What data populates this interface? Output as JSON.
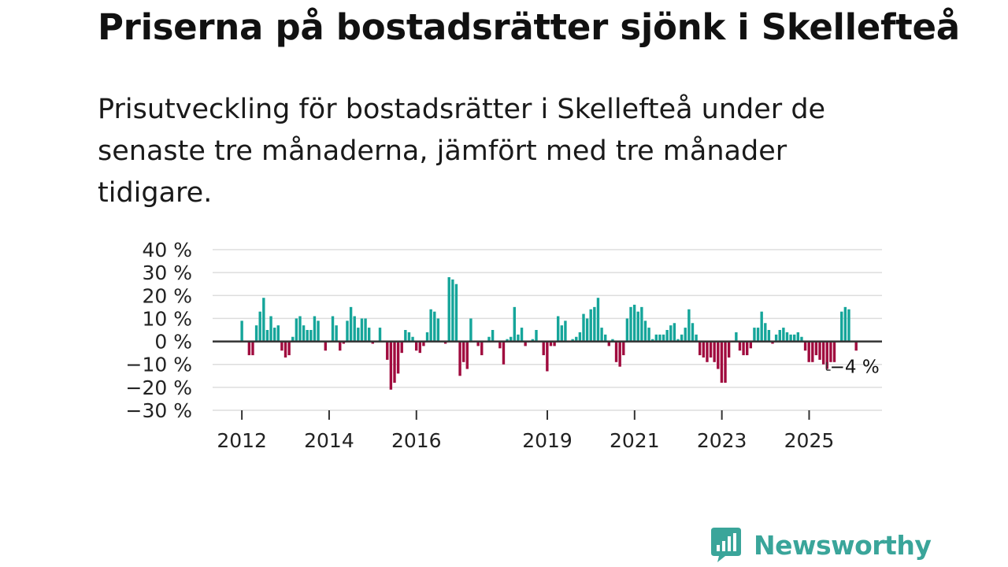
{
  "title": "Priserna på bostadsrätter sjönk i Skellefteå",
  "subtitle": "Prisutveckling för bostadsrätter i Skellefteå under de senaste tre månaderna, jämfört med tre månader tidigare.",
  "brand": {
    "name": "Newsworthy",
    "color": "#3aa59a",
    "icon": "newsworthy-logo-icon"
  },
  "colors": {
    "positive": "#15a59a",
    "negative": "#a00b3e",
    "grid": "#dddddd",
    "zero": "#333333"
  },
  "chart_data": {
    "type": "bar",
    "title": "Priserna på bostadsrätter sjönk i Skellefteå",
    "xlabel": "",
    "ylabel": "",
    "ylim": [
      -30,
      40
    ],
    "yticks": [
      40,
      30,
      20,
      10,
      0,
      -10,
      -20,
      -30
    ],
    "ytick_labels": [
      "40 %",
      "30 %",
      "20 %",
      "10 %",
      "0 %",
      "−10 %",
      "−20 %",
      "−30 %"
    ],
    "xlim": [
      2011.33,
      2026.67
    ],
    "xticks": [
      2012,
      2014,
      2016,
      2019,
      2021,
      2023,
      2025
    ],
    "xtick_labels": [
      "2012",
      "2014",
      "2016",
      "2019",
      "2021",
      "2023",
      "2025"
    ],
    "x_start": 2012.0,
    "x_step": 0.0833,
    "values": [
      9,
      null,
      -6,
      -6,
      7,
      13,
      19,
      5,
      11,
      6,
      7,
      -4,
      -7,
      -6,
      2,
      10,
      11,
      7,
      5,
      5,
      11,
      9,
      null,
      -4,
      null,
      11,
      7,
      -4,
      -1,
      9,
      15,
      11,
      6,
      10,
      10,
      6,
      -1,
      null,
      6,
      null,
      -8,
      -21,
      -18,
      -14,
      -5,
      5,
      4,
      2,
      -4,
      -5,
      -2,
      4,
      14,
      13,
      10,
      null,
      -1,
      28,
      27,
      25,
      -15,
      -9,
      -12,
      10,
      null,
      -2,
      -6,
      null,
      2,
      5,
      null,
      -3,
      -10,
      1,
      2,
      15,
      3,
      6,
      -2,
      null,
      1,
      5,
      null,
      -6,
      -13,
      -2,
      -2,
      11,
      7,
      9,
      null,
      1,
      2,
      4,
      12,
      10,
      14,
      15,
      19,
      6,
      3,
      -2,
      1,
      -9,
      -11,
      -6,
      10,
      15,
      16,
      13,
      15,
      9,
      6,
      1,
      3,
      3,
      3,
      5,
      7,
      8,
      1,
      3,
      6,
      14,
      8,
      3,
      -6,
      -7,
      -9,
      -7,
      -9,
      -12,
      -18,
      -18,
      -7,
      null,
      4,
      -4,
      -6,
      -6,
      -3,
      6,
      6,
      13,
      8,
      5,
      -1,
      3,
      5,
      6,
      4,
      3,
      3,
      4,
      2,
      -4,
      -9,
      -9,
      -6,
      -8,
      -10,
      -12,
      -9,
      -9,
      null,
      13,
      15,
      14,
      null,
      -4
    ],
    "last_value_label": "−4 %",
    "last_value": -4
  }
}
